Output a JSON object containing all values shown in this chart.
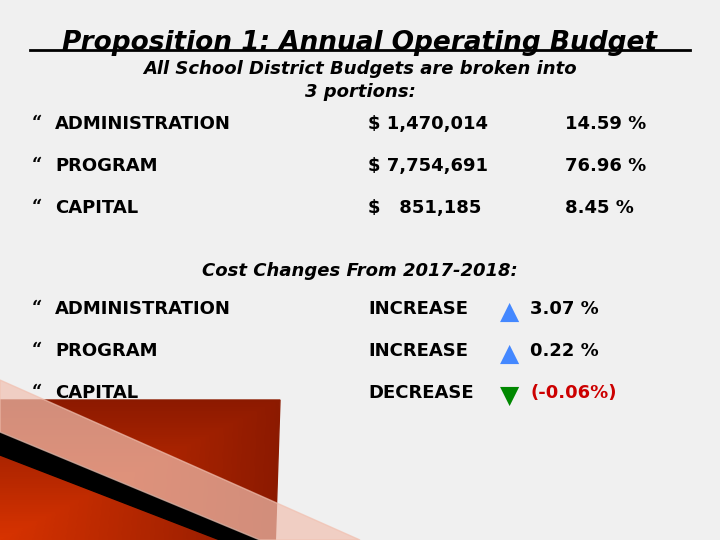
{
  "title": "Proposition 1: Annual Operating Budget",
  "subtitle_line1": "All School District Budgets are broken into",
  "subtitle_line2": "3 portions:",
  "bg_color": "#f0f0f0",
  "title_color": "#000000",
  "body_color": "#000000",
  "items": [
    {
      "label": "ADMINISTRATION",
      "amount": "$ 1,470,014",
      "pct": "14.59 %"
    },
    {
      "label": "PROGRAM",
      "amount": "$ 7,754,691",
      "pct": "76.96 %"
    },
    {
      "label": "CAPITAL",
      "amount": "$   851,185",
      "pct": "8.45 %"
    }
  ],
  "changes_title": "Cost Changes From 2017-2018:",
  "changes": [
    {
      "label": "ADMINISTRATION",
      "change": "INCREASE",
      "direction": "up",
      "pct": "3.07 %",
      "pct_color": "#000000"
    },
    {
      "label": "PROGRAM",
      "change": "INCREASE",
      "direction": "up",
      "pct": "0.22 %",
      "pct_color": "#000000"
    },
    {
      "label": "CAPITAL",
      "change": "DECREASE",
      "direction": "down",
      "pct": "(-0.06%)",
      "pct_color": "#cc0000"
    }
  ],
  "up_arrow_color": "#4488ff",
  "down_arrow_color": "#008800",
  "bullet_char": "“",
  "title_fontsize": 19,
  "body_fontsize": 13,
  "subtitle_fontsize": 13,
  "changes_title_fontsize": 13
}
